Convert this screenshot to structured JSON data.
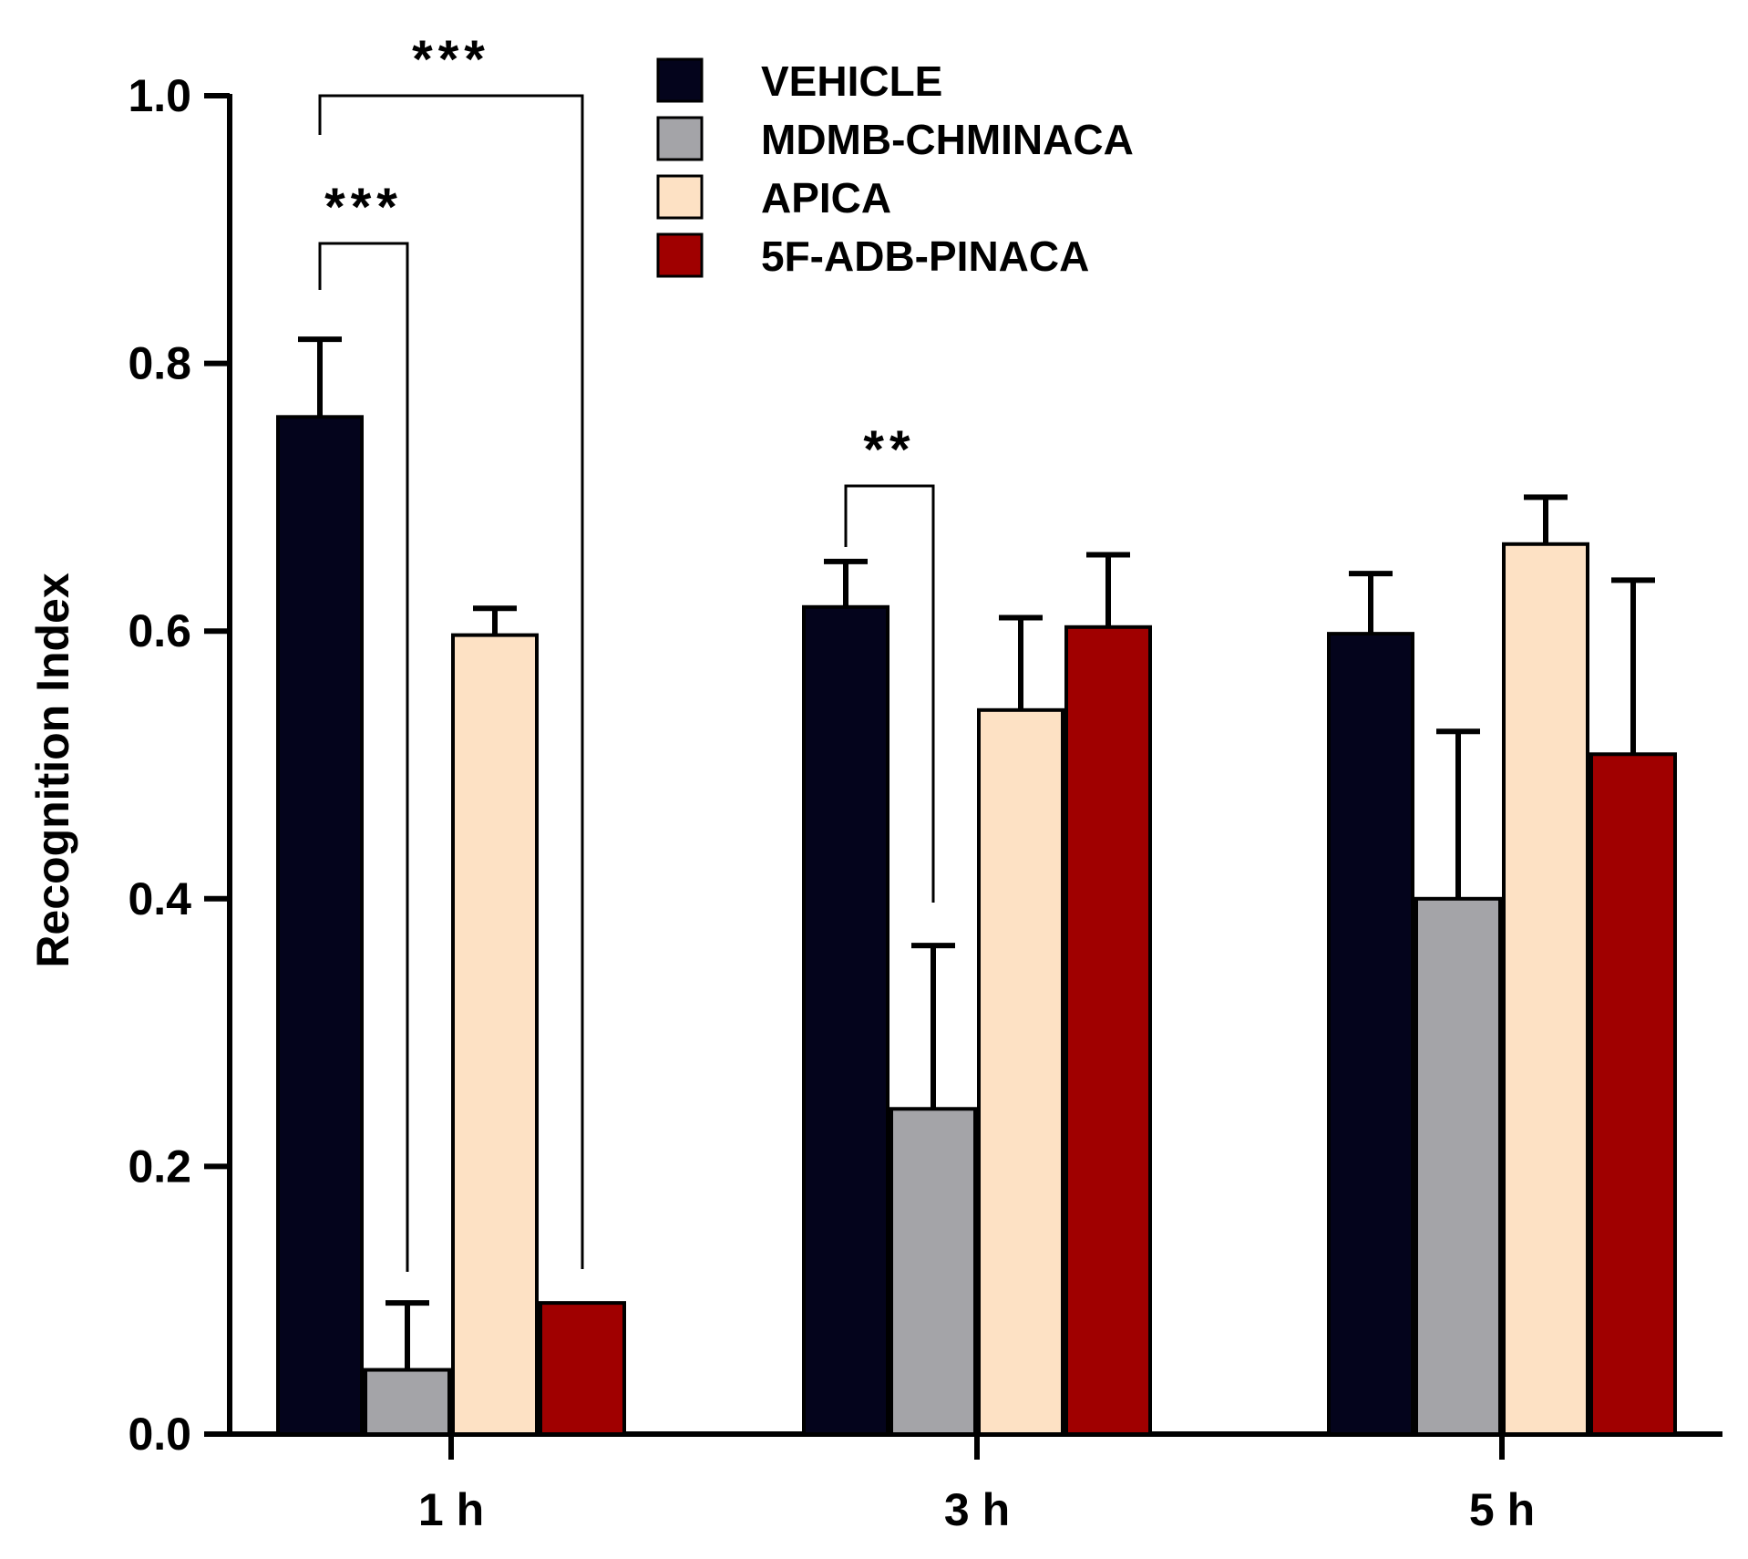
{
  "chart_data": {
    "type": "bar",
    "title": "",
    "xlabel": "",
    "ylabel": "Recognition Index",
    "ylim": [
      0,
      1.0
    ],
    "y_ticks": [
      "0.0",
      "0.2",
      "0.4",
      "0.6",
      "0.8",
      "1.0"
    ],
    "y_tick_values": [
      0,
      0.2,
      0.4,
      0.6,
      0.8,
      1.0
    ],
    "categories": [
      "1 h",
      "3 h",
      "5 h"
    ],
    "series": [
      {
        "name": "VEHICLE",
        "color": "#04041c",
        "values": [
          0.76,
          0.618,
          0.598
        ],
        "errors": [
          0.058,
          0.034,
          0.045
        ]
      },
      {
        "name": "MDMB-CHMINACA",
        "color": "#a4a4a8",
        "values": [
          0.048,
          0.243,
          0.4
        ],
        "errors": [
          0.05,
          0.122,
          0.125
        ]
      },
      {
        "name": "APICA",
        "color": "#fde1c4",
        "values": [
          0.597,
          0.541,
          0.665
        ],
        "errors": [
          0.02,
          0.069,
          0.035
        ]
      },
      {
        "name": "5F-ADB-PINACA",
        "color": "#a00000",
        "values": [
          0.098,
          0.603,
          0.508
        ],
        "errors": [
          0.0,
          0.054,
          0.13
        ]
      }
    ],
    "grid": false,
    "legend_position": "top-center",
    "significance": [
      {
        "category": "1 h",
        "from_series": 0,
        "to_series": 1,
        "label": "***"
      },
      {
        "category": "1 h",
        "from_series": 0,
        "to_series": 3,
        "label": "***"
      },
      {
        "category": "3 h",
        "from_series": 0,
        "to_series": 1,
        "label": "**"
      }
    ]
  }
}
